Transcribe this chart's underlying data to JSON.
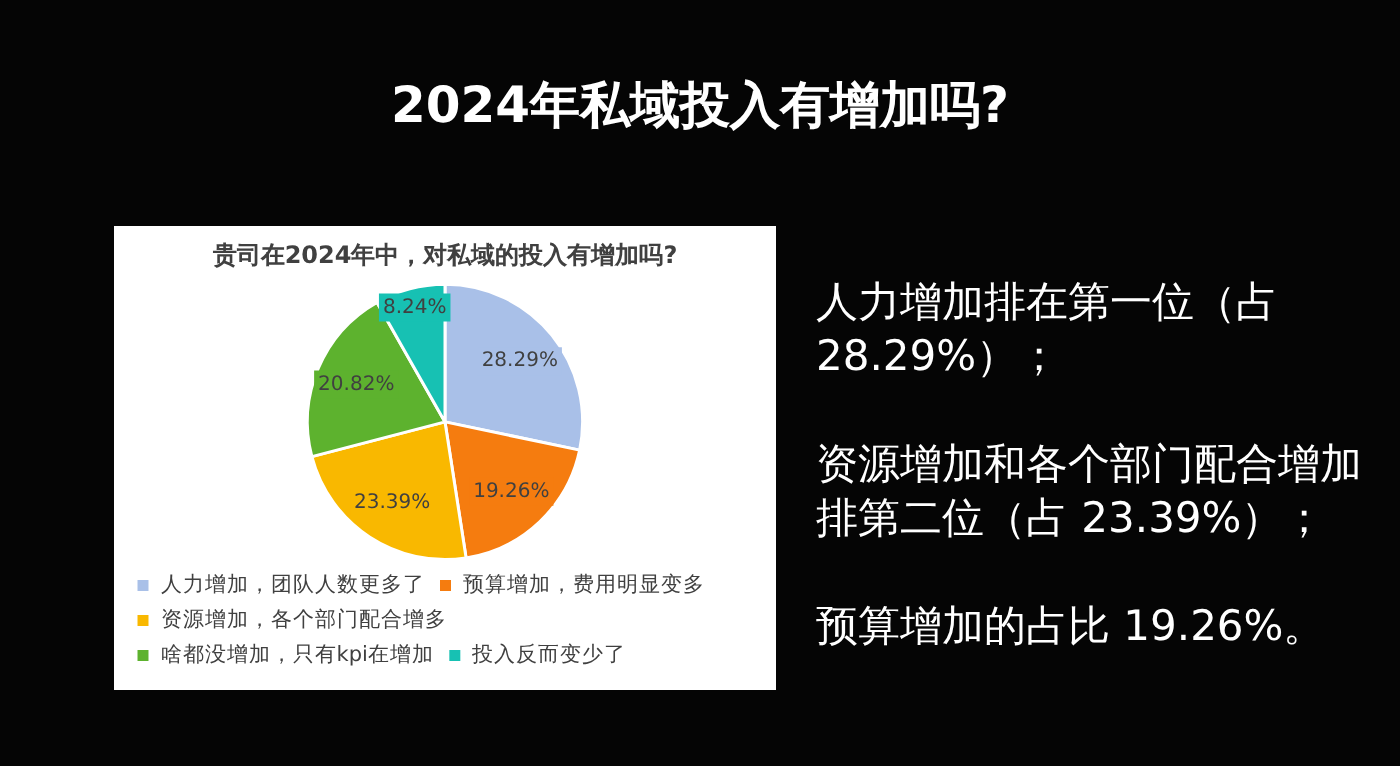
{
  "chart_data": {
    "type": "pie",
    "title": "2024年私域投入有增加吗?",
    "subtitle": "贵司在2024年中，对私域的投入有增加吗?",
    "categories": [
      "人力增加，团队人数更多了",
      "预算增加，费用明显变多",
      "资源增加，各个部门配合增多",
      "啥都没增加，只有kpi在增加",
      "投入反而变少了"
    ],
    "values": [
      28.29,
      19.26,
      23.39,
      20.82,
      8.24
    ],
    "value_labels": [
      "28.29%",
      "19.26%",
      "23.39%",
      "20.82%",
      "8.24%"
    ],
    "colors": [
      "#a9c0e8",
      "#f57c0f",
      "#f9b800",
      "#5db22e",
      "#17c1b3"
    ],
    "legend": "bottom",
    "annotations": [
      "人力增加排在第一位（占 28.29%）；",
      "资源增加和各个部门配合增加排第二位（占 23.39%）；",
      "预算增加的占比 19.26%。"
    ]
  }
}
